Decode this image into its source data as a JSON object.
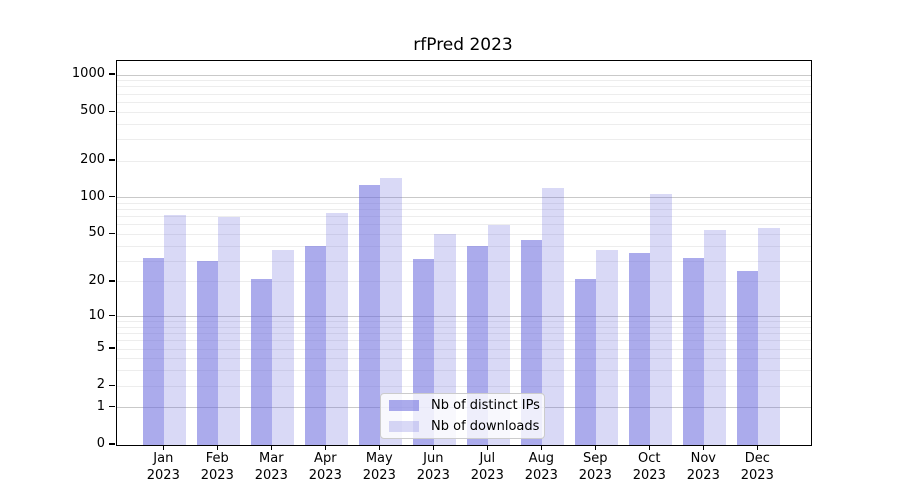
{
  "chart_data": {
    "type": "bar",
    "title": "rfPred 2023",
    "categories": [
      "Jan 2023",
      "Feb 2023",
      "Mar 2023",
      "Apr 2023",
      "May 2023",
      "Jun 2023",
      "Jul 2023",
      "Aug 2023",
      "Sep 2023",
      "Oct 2023",
      "Nov 2023",
      "Dec 2023"
    ],
    "series": [
      {
        "name": "Nb of distinct IPs",
        "color": "#6666dd",
        "alpha": 0.55,
        "values": [
          32,
          30,
          21,
          40,
          127,
          31,
          40,
          45,
          21,
          35,
          32,
          25
        ]
      },
      {
        "name": "Nb of downloads",
        "color": "#6666dd",
        "alpha": 0.25,
        "values": [
          72,
          69,
          37,
          75,
          145,
          50,
          60,
          120,
          37,
          108,
          54,
          57
        ]
      }
    ],
    "y_axis": {
      "scale": "log10(value+1)",
      "tick_labels": [
        1000,
        500,
        200,
        100,
        50,
        20,
        10,
        5,
        2,
        1,
        0
      ],
      "major_gridlines": [
        1,
        10,
        100,
        1000
      ],
      "minor_gridline_bases": [
        1,
        10,
        100
      ],
      "ylim_top": 1300
    },
    "x_axis": {
      "tick_label_line2": "2023"
    },
    "legend": {
      "labels": [
        "Nb of distinct IPs",
        "Nb of downloads"
      ],
      "position": "lower center"
    },
    "grid": "on"
  },
  "colors": {
    "bar_base": "#6666dd",
    "major_grid": "#c9c9c9",
    "minor_grid": "#ededed",
    "spine": "#000000",
    "legend_border": "#cccccc",
    "legend_background": "rgba(255,255,255,0.8)"
  }
}
